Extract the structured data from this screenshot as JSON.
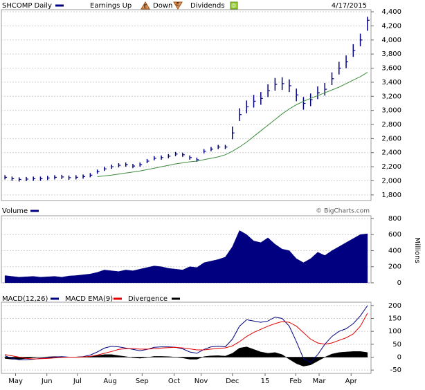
{
  "chart_data": [
    {
      "type": "ohlc",
      "title": "SHCOMP Daily",
      "date": "4/17/2015",
      "annotations": [
        "Earnings Up",
        "Down",
        "Dividends"
      ],
      "xlim": [
        -0.5,
        51.5
      ],
      "ylim": [
        1720,
        4430
      ],
      "yticks": [
        {
          "value": 1800,
          "label": "1,800"
        },
        {
          "value": 2000,
          "label": "2,000"
        },
        {
          "value": 2200,
          "label": "2,200"
        },
        {
          "value": 2400,
          "label": "2,400"
        },
        {
          "value": 2600,
          "label": "2,600"
        },
        {
          "value": 2800,
          "label": "2,800"
        },
        {
          "value": 3000,
          "label": "3,000"
        },
        {
          "value": 3200,
          "label": "3,200"
        },
        {
          "value": 3400,
          "label": "3,400"
        },
        {
          "value": 3600,
          "label": "3,600"
        },
        {
          "value": 3800,
          "label": "3,800"
        },
        {
          "value": 4000,
          "label": "4,000"
        },
        {
          "value": 4200,
          "label": "4,200"
        },
        {
          "value": 4400,
          "label": "4,400"
        }
      ],
      "grid": true,
      "series": [
        {
          "name": "SHCOMP Daily",
          "color": "#000080",
          "high": [
            2080,
            2060,
            2050,
            2055,
            2060,
            2060,
            2070,
            2080,
            2085,
            2075,
            2080,
            2090,
            2110,
            2160,
            2200,
            2230,
            2250,
            2260,
            2240,
            2260,
            2310,
            2350,
            2360,
            2380,
            2410,
            2400,
            2360,
            2330,
            2450,
            2480,
            2510,
            2510,
            2770,
            3030,
            3140,
            3220,
            3260,
            3370,
            3460,
            3470,
            3440,
            3310,
            3190,
            3240,
            3340,
            3390,
            3540,
            3690,
            3780,
            3940,
            4090,
            4330
          ],
          "low": [
            2020,
            2000,
            1990,
            1995,
            2000,
            2000,
            2010,
            2020,
            2025,
            2015,
            2020,
            2030,
            2050,
            2100,
            2140,
            2170,
            2190,
            2200,
            2180,
            2200,
            2250,
            2290,
            2300,
            2320,
            2350,
            2340,
            2300,
            2270,
            2390,
            2420,
            2450,
            2450,
            2590,
            2850,
            2960,
            3040,
            3080,
            3190,
            3280,
            3290,
            3260,
            3130,
            3010,
            3060,
            3160,
            3210,
            3360,
            3510,
            3600,
            3760,
            3910,
            4130
          ],
          "close": [
            2050,
            2030,
            2020,
            2025,
            2030,
            2030,
            2040,
            2050,
            2055,
            2045,
            2050,
            2060,
            2080,
            2130,
            2170,
            2200,
            2220,
            2230,
            2210,
            2230,
            2280,
            2320,
            2330,
            2350,
            2380,
            2370,
            2330,
            2300,
            2420,
            2450,
            2480,
            2480,
            2680,
            2940,
            3050,
            3130,
            3170,
            3280,
            3370,
            3380,
            3350,
            3220,
            3100,
            3150,
            3250,
            3300,
            3450,
            3600,
            3690,
            3850,
            4000,
            4280
          ]
        },
        {
          "color": "#3c8c3c",
          "values": [
            null,
            null,
            null,
            null,
            null,
            null,
            null,
            null,
            null,
            null,
            null,
            null,
            null,
            2060,
            2070,
            2080,
            2095,
            2110,
            2125,
            2140,
            2160,
            2180,
            2200,
            2220,
            2240,
            2255,
            2270,
            2280,
            2300,
            2320,
            2340,
            2370,
            2420,
            2480,
            2550,
            2630,
            2710,
            2790,
            2870,
            2950,
            3020,
            3080,
            3130,
            3170,
            3210,
            3250,
            3290,
            3330,
            3380,
            3430,
            3480,
            3540
          ]
        }
      ]
    },
    {
      "type": "area",
      "title": "Volume",
      "credit": "© BigCharts.com",
      "ylabel": "Millions",
      "xlim": [
        -0.5,
        51.5
      ],
      "ylim": [
        0,
        834
      ],
      "yticks": [
        0,
        200,
        400,
        600,
        800
      ],
      "grid": true,
      "series": [
        {
          "name": "Volume",
          "color": "#000080",
          "values": [
            90,
            80,
            70,
            75,
            80,
            70,
            75,
            80,
            70,
            85,
            90,
            100,
            110,
            130,
            160,
            150,
            140,
            160,
            150,
            170,
            190,
            210,
            200,
            180,
            170,
            160,
            200,
            190,
            250,
            270,
            290,
            320,
            450,
            650,
            600,
            520,
            500,
            560,
            480,
            420,
            400,
            300,
            250,
            300,
            380,
            340,
            400,
            450,
            500,
            550,
            600,
            610
          ]
        }
      ]
    },
    {
      "type": "line",
      "xlim": [
        -0.5,
        51.5
      ],
      "ylim": [
        -63,
        213
      ],
      "yticks": [
        -50,
        0,
        50,
        100,
        150,
        200
      ],
      "grid": true,
      "xticks": [
        {
          "value": 1.5,
          "label": "May"
        },
        {
          "value": 5.9,
          "label": "Jun"
        },
        {
          "value": 10.2,
          "label": "Jul"
        },
        {
          "value": 14.8,
          "label": "Aug"
        },
        {
          "value": 19.3,
          "label": "Sep"
        },
        {
          "value": 23.8,
          "label": "Oct"
        },
        {
          "value": 27.6,
          "label": "Nov"
        },
        {
          "value": 32.0,
          "label": "Dec"
        },
        {
          "value": 36.6,
          "label": "15"
        },
        {
          "value": 40.9,
          "label": "Feb"
        },
        {
          "value": 44.2,
          "label": "Mar"
        },
        {
          "value": 48.7,
          "label": "Apr"
        }
      ],
      "series": [
        {
          "name": "MACD(12,26)",
          "color": "#000080",
          "values": [
            5,
            -5,
            -10,
            -10,
            -8,
            -5,
            -3,
            0,
            2,
            0,
            0,
            2,
            8,
            20,
            35,
            42,
            40,
            35,
            30,
            25,
            30,
            38,
            40,
            40,
            38,
            32,
            20,
            15,
            30,
            40,
            42,
            40,
            70,
            120,
            145,
            140,
            135,
            140,
            155,
            150,
            120,
            60,
            -5,
            -20,
            10,
            50,
            80,
            100,
            110,
            130,
            160,
            200
          ]
        },
        {
          "name": "MACD EMA(9)",
          "color": "#e00000",
          "values": [
            10,
            5,
            0,
            -5,
            -7,
            -6,
            -5,
            -3,
            -1,
            0,
            0,
            1,
            3,
            8,
            15,
            22,
            30,
            33,
            33,
            31,
            31,
            33,
            35,
            37,
            38,
            36,
            32,
            28,
            28,
            31,
            34,
            36,
            44,
            60,
            80,
            96,
            108,
            120,
            130,
            138,
            135,
            120,
            95,
            70,
            55,
            50,
            55,
            65,
            75,
            90,
            120,
            170
          ]
        },
        {
          "name": "Divergence",
          "color": "#000000",
          "kind": "area",
          "values": [
            -5,
            -8,
            -8,
            -5,
            -2,
            0,
            1,
            2,
            2,
            0,
            0,
            1,
            3,
            6,
            10,
            10,
            6,
            2,
            -2,
            -4,
            -1,
            3,
            3,
            2,
            0,
            -3,
            -8,
            -8,
            2,
            5,
            6,
            4,
            15,
            35,
            40,
            30,
            20,
            15,
            18,
            10,
            -8,
            -25,
            -35,
            -30,
            -15,
            0,
            12,
            18,
            20,
            22,
            22,
            18
          ]
        }
      ]
    }
  ]
}
